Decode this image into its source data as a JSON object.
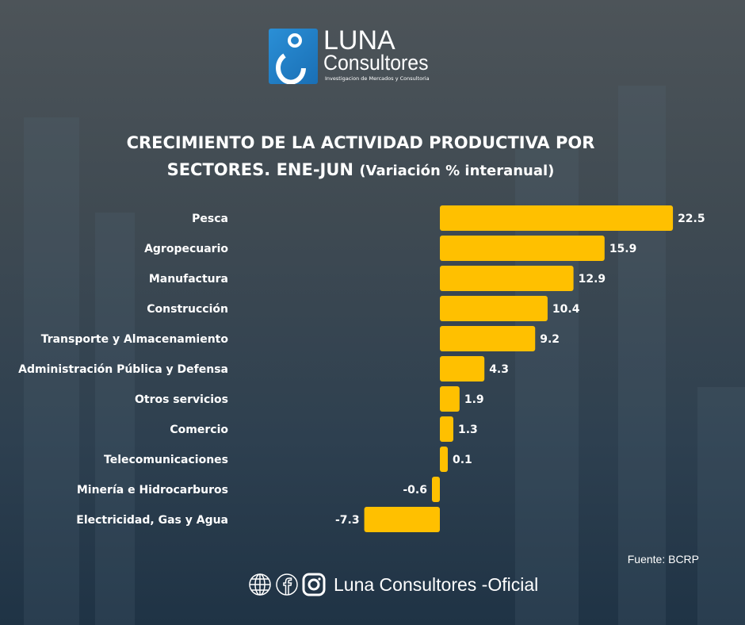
{
  "logo": {
    "name": "LUNA",
    "name2": "Consultores",
    "tagline": "Investigacion de Mercados y Consultoria"
  },
  "title": {
    "line1": "CRECIMIENTO DE LA ACTIVIDAD PRODUCTIVA POR",
    "line2": "SECTORES. ENE-JUN",
    "line2_sub": "(Variación % interanual)"
  },
  "chart_data": {
    "type": "bar",
    "orientation": "horizontal",
    "title": "CRECIMIENTO DE LA ACTIVIDAD PRODUCTIVA POR SECTORES. ENE-JUN (Variación % interanual)",
    "categories": [
      "Pesca",
      "Agropecuario",
      "Manufactura",
      "Construcción",
      "Transporte y Almacenamiento",
      "Administración Pública y Defensa",
      "Otros servicios",
      "Comercio",
      "Telecomunicaciones",
      "Minería e Hidrocarburos",
      "Electricidad, Gas y Agua"
    ],
    "values": [
      22.5,
      15.9,
      12.9,
      10.4,
      9.2,
      4.3,
      1.9,
      1.3,
      0.1,
      -0.6,
      -7.3
    ],
    "labels": [
      "22.5",
      "15.9",
      "12.9",
      "10.4",
      "9.2",
      "4.3",
      "1.9",
      "1.3",
      "0.1",
      "-0.6",
      "-7.3"
    ],
    "xlim": [
      -7.3,
      22.5
    ],
    "bar_color": "#ffc000",
    "grid": false
  },
  "source": "Fuente: BCRP",
  "footer": {
    "label": "Luna Consultores -Oficial",
    "icons": [
      "globe-icon",
      "facebook-icon",
      "instagram-icon"
    ]
  }
}
